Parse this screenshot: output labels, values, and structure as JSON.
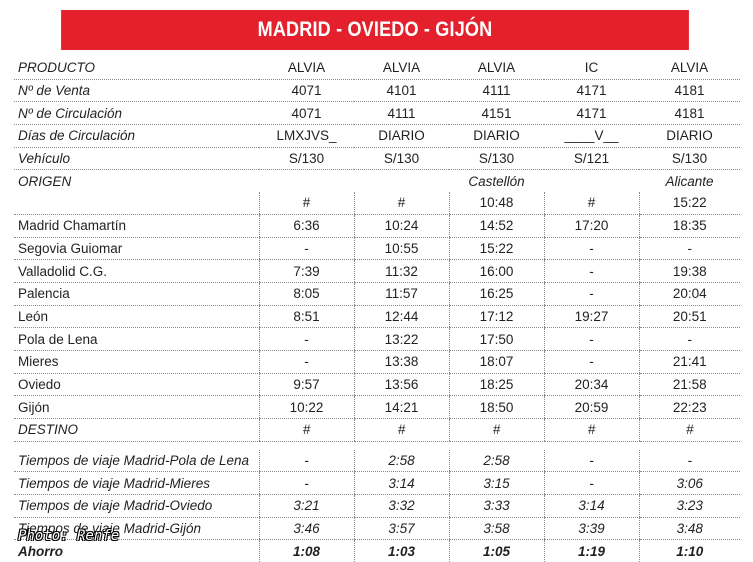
{
  "title": "MADRID - OVIEDO - GIJÓN",
  "header_rows": [
    {
      "label": "PRODUCTO",
      "values": [
        "ALVIA",
        "ALVIA",
        "ALVIA",
        "IC",
        "ALVIA"
      ]
    },
    {
      "label": "Nº de Venta",
      "values": [
        "4071",
        "4101",
        "4111",
        "4171",
        "4181"
      ]
    },
    {
      "label": "Nº de Circulación",
      "values": [
        "4071",
        "4111",
        "4151",
        "4171",
        "4181"
      ]
    },
    {
      "label": "Días de Circulación",
      "values": [
        "LMXJVS_",
        "DIARIO",
        "DIARIO",
        "____V__",
        "DIARIO"
      ]
    },
    {
      "label": "Vehículo",
      "values": [
        "S/130",
        "S/130",
        "S/130",
        "S/121",
        "S/130"
      ]
    }
  ],
  "origin": {
    "label": "ORIGEN",
    "places": [
      "",
      "",
      "Castellón",
      "",
      "Alicante"
    ],
    "values": [
      "#",
      "#",
      "10:48",
      "#",
      "15:22"
    ]
  },
  "stations": [
    {
      "name": "Madrid Chamartín",
      "times": [
        "6:36",
        "10:24",
        "14:52",
        "17:20",
        "18:35"
      ]
    },
    {
      "name": "Segovia Guiomar",
      "times": [
        "-",
        "10:55",
        "15:22",
        "-",
        "-"
      ]
    },
    {
      "name": "Valladolid C.G.",
      "times": [
        "7:39",
        "11:32",
        "16:00",
        "-",
        "19:38"
      ]
    },
    {
      "name": "Palencia",
      "times": [
        "8:05",
        "11:57",
        "16:25",
        "-",
        "20:04"
      ]
    },
    {
      "name": "León",
      "times": [
        "8:51",
        "12:44",
        "17:12",
        "19:27",
        "20:51"
      ]
    },
    {
      "name": "Pola de Lena",
      "times": [
        "-",
        "13:22",
        "17:50",
        "-",
        "-"
      ]
    },
    {
      "name": "Mieres",
      "times": [
        "-",
        "13:38",
        "18:07",
        "-",
        "21:41"
      ]
    },
    {
      "name": "Oviedo",
      "times": [
        "9:57",
        "13:56",
        "18:25",
        "20:34",
        "21:58"
      ]
    },
    {
      "name": "Gijón",
      "times": [
        "10:22",
        "14:21",
        "18:50",
        "20:59",
        "22:23"
      ]
    }
  ],
  "destination": {
    "label": "DESTINO",
    "values": [
      "#",
      "#",
      "#",
      "#",
      "#"
    ]
  },
  "travel_times": [
    {
      "label": "Tiempos de viaje Madrid-Pola de Lena",
      "values": [
        "-",
        "2:58",
        "2:58",
        "-",
        "-"
      ]
    },
    {
      "label": "Tiempos de viaje Madrid-Mieres",
      "values": [
        "-",
        "3:14",
        "3:15",
        "-",
        "3:06"
      ]
    },
    {
      "label": "Tiempos de viaje Madrid-Oviedo",
      "values": [
        "3:21",
        "3:32",
        "3:33",
        "3:14",
        "3:23"
      ]
    },
    {
      "label": "Tiempos de viaje Madrid-Gijón",
      "values": [
        "3:46",
        "3:57",
        "3:58",
        "3:39",
        "3:48"
      ]
    }
  ],
  "savings": {
    "label": "Ahorro",
    "values": [
      "1:08",
      "1:03",
      "1:05",
      "1:19",
      "1:10"
    ]
  },
  "photo_credit": "Photo: Renfe",
  "colors": {
    "banner": "#e3202b",
    "text": "#231f20",
    "dotted_rule": "#8a8a8a"
  }
}
